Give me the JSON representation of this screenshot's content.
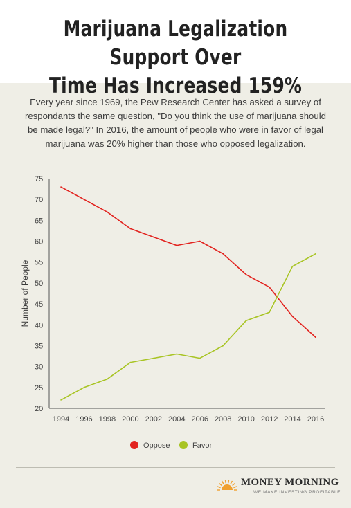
{
  "header": {
    "title_line1": "Marijuana Legalization Support Over",
    "title_line2": "Time Has Increased 159%",
    "subtitle_line1": "Every year since 1969, the Pew Research Center has asked a survey of",
    "subtitle_line2": "respondants the same question, \"Do you think the use of marijuana should",
    "subtitle_line3": "be made legal?\" In 2016, the amount of people who were in favor of legal",
    "subtitle_line4": "marijuana was 20% higher than those who opposed legalization."
  },
  "chart_data": {
    "type": "line",
    "title": "",
    "xlabel": "",
    "ylabel": "Number of People",
    "x": [
      1994,
      1996,
      1998,
      2000,
      2002,
      2004,
      2006,
      2008,
      2010,
      2012,
      2014,
      2016
    ],
    "ylim": [
      20,
      75
    ],
    "yticks": [
      20,
      25,
      30,
      35,
      40,
      45,
      50,
      55,
      60,
      65,
      70,
      75
    ],
    "grid": false,
    "legend_position": "bottom-center",
    "series": [
      {
        "name": "Oppose",
        "color": "#e2231f",
        "values": [
          73,
          70,
          67,
          63,
          61,
          59,
          60,
          57,
          52,
          49,
          42,
          37
        ]
      },
      {
        "name": "Favor",
        "color": "#a8c423",
        "values": [
          22,
          25,
          27,
          31,
          32,
          33,
          32,
          35,
          41,
          43,
          54,
          57
        ]
      }
    ]
  },
  "footer": {
    "brand": "MONEY MORNING",
    "tagline": "WE MAKE INVESTING PROFITABLE",
    "logo_icon": "sunrise-icon"
  },
  "colors": {
    "background": "#efeee6",
    "header_background": "#ffffff",
    "axis": "#555555",
    "oppose": "#e2231f",
    "favor": "#a8c423",
    "logo_sun": "#f0a030"
  }
}
